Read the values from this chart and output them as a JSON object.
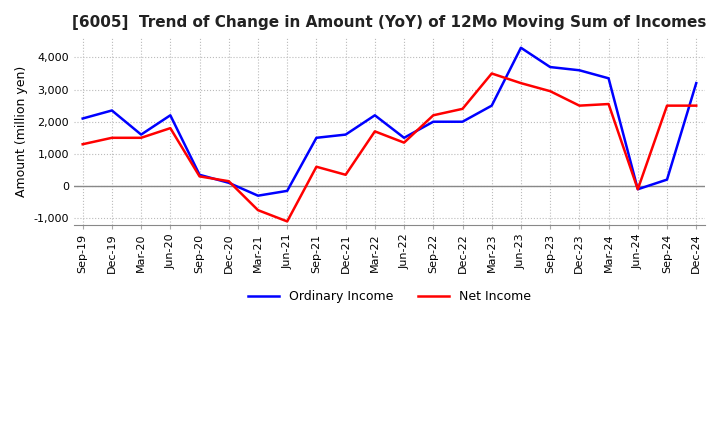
{
  "title": "[6005]  Trend of Change in Amount (YoY) of 12Mo Moving Sum of Incomes",
  "ylabel": "Amount (million yen)",
  "x_labels": [
    "Sep-19",
    "Dec-19",
    "Mar-20",
    "Jun-20",
    "Sep-20",
    "Dec-20",
    "Mar-21",
    "Jun-21",
    "Sep-21",
    "Dec-21",
    "Mar-22",
    "Jun-22",
    "Sep-22",
    "Dec-22",
    "Mar-23",
    "Jun-23",
    "Sep-23",
    "Dec-23",
    "Mar-24",
    "Jun-24",
    "Sep-24",
    "Dec-24"
  ],
  "ordinary_income": [
    2100,
    2350,
    1600,
    2200,
    350,
    100,
    -300,
    -150,
    1500,
    1600,
    2200,
    1500,
    2000,
    2000,
    2500,
    4300,
    3700,
    3600,
    3350,
    -100,
    200,
    3200
  ],
  "net_income": [
    1300,
    1500,
    1500,
    1800,
    300,
    150,
    -750,
    -1100,
    600,
    350,
    1700,
    1350,
    2200,
    2400,
    3500,
    3200,
    2950,
    2500,
    2550,
    -100,
    2500,
    2500
  ],
  "line_color_ordinary": "#0000ff",
  "line_color_net": "#ff0000",
  "background_color": "#ffffff",
  "grid_color": "#bbbbbb",
  "grid_style": "dotted",
  "ylim": [
    -1200,
    4600
  ],
  "yticks": [
    -1000,
    0,
    1000,
    2000,
    3000,
    4000
  ],
  "title_fontsize": 11,
  "axis_label_fontsize": 9,
  "tick_fontsize": 8,
  "legend_fontsize": 9
}
